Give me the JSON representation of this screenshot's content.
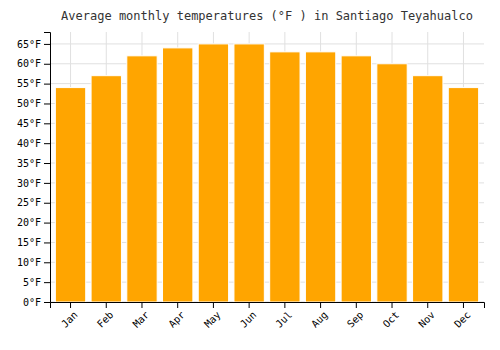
{
  "chart_data": {
    "type": "bar",
    "title": "Average monthly temperatures (°F ) in Santiago Teyahualco",
    "categories": [
      "Jan",
      "Feb",
      "Mar",
      "Apr",
      "May",
      "Jun",
      "Jul",
      "Aug",
      "Sep",
      "Oct",
      "Nov",
      "Dec"
    ],
    "values": [
      54,
      57,
      62,
      64,
      65,
      65,
      63,
      63,
      62,
      60,
      57,
      54
    ],
    "color": "#FFA500",
    "ylim": [
      0,
      68
    ],
    "yticks": [
      {
        "value": 0,
        "label": "0°F"
      },
      {
        "value": 5,
        "label": "5°F"
      },
      {
        "value": 10,
        "label": "10°F"
      },
      {
        "value": 15,
        "label": "15°F"
      },
      {
        "value": 20,
        "label": "20°F"
      },
      {
        "value": 25,
        "label": "25°F"
      },
      {
        "value": 30,
        "label": "30°F"
      },
      {
        "value": 35,
        "label": "35°F"
      },
      {
        "value": 40,
        "label": "40°F"
      },
      {
        "value": 45,
        "label": "45°F"
      },
      {
        "value": 50,
        "label": "50°F"
      },
      {
        "value": 55,
        "label": "55°F"
      },
      {
        "value": 60,
        "label": "60°F"
      },
      {
        "value": 65,
        "label": "65°F"
      }
    ],
    "grid": true
  }
}
